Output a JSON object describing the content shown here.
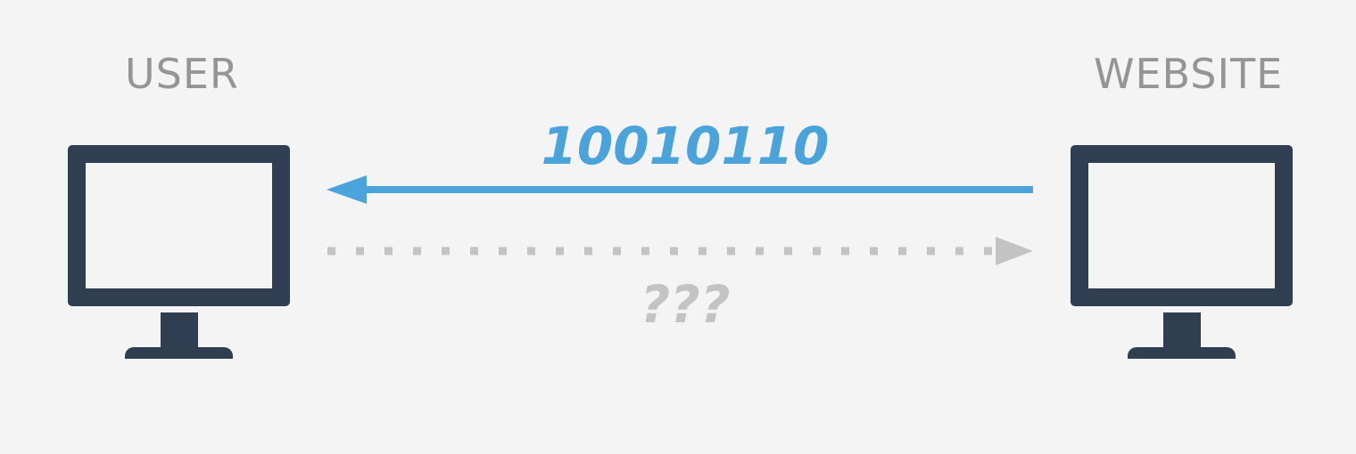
{
  "nodes": {
    "user": {
      "label": "USER"
    },
    "website": {
      "label": "WEBSITE"
    }
  },
  "arrows": {
    "response": {
      "label": "10010110",
      "color": "#4aa3db",
      "direction": "website-to-user",
      "style": "solid"
    },
    "request": {
      "label": "???",
      "color": "#c3c3c3",
      "direction": "user-to-website",
      "style": "dotted"
    }
  },
  "colors": {
    "background": "#f4f4f4",
    "computer": "#2f3e51",
    "node_label": "#959595"
  },
  "icons": {
    "user": "monitor-icon",
    "website": "monitor-icon"
  }
}
